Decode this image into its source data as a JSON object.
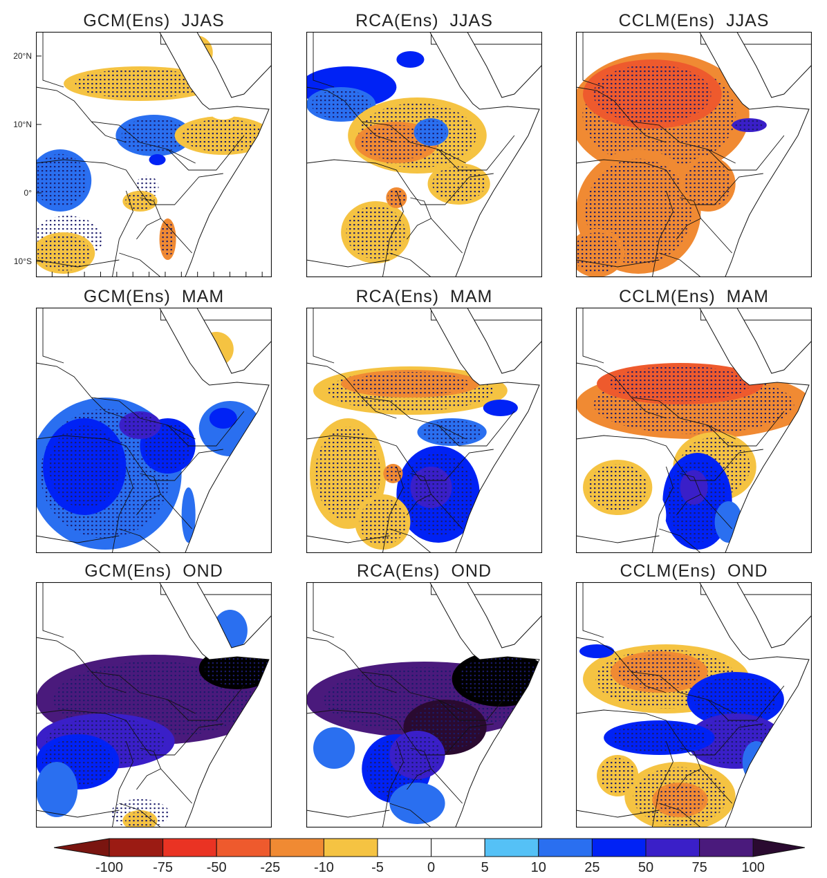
{
  "panels": [
    {
      "title": "GCM(Ens)  JJAS"
    },
    {
      "title": "RCA(Ens)  JJAS"
    },
    {
      "title": "CCLM(Ens)  JJAS"
    },
    {
      "title": "GCM(Ens)  MAM"
    },
    {
      "title": "RCA(Ens)  MAM"
    },
    {
      "title": "CCLM(Ens)  MAM"
    },
    {
      "title": "GCM(Ens)  OND"
    },
    {
      "title": "RCA(Ens)  OND"
    },
    {
      "title": "CCLM(Ens)  OND"
    }
  ],
  "lat_labels": [
    "20°N",
    "10°N",
    "0°",
    "10°S"
  ],
  "colorbar": {
    "levels": [
      "-100",
      "-75",
      "-50",
      "-25",
      "-10",
      "-5",
      "0",
      "5",
      "10",
      "25",
      "50",
      "75",
      "100"
    ],
    "colors": [
      "#7a1510",
      "#9b1b13",
      "#ea3323",
      "#ee5a2d",
      "#f08a33",
      "#f5c342",
      "#ffffff",
      "#ffffff",
      "#55c1f6",
      "#2a6ff0",
      "#0022f5",
      "#3a1fc8",
      "#4a1a7c",
      "#2a0a30"
    ]
  }
}
